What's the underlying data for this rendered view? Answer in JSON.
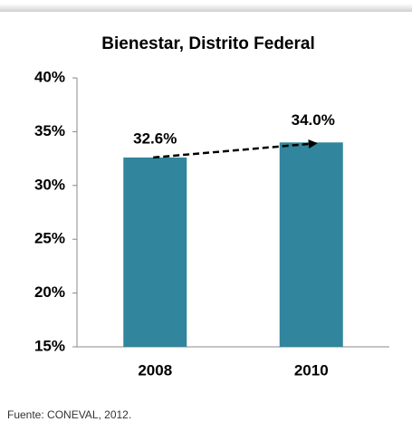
{
  "chart_data": {
    "type": "bar",
    "title": "Bienestar, Distrito Federal",
    "categories": [
      "2008",
      "2010"
    ],
    "values": [
      32.6,
      34.0
    ],
    "value_labels": [
      "32.6%",
      "34.0%"
    ],
    "color": "#31859c",
    "ylim": [
      15,
      40
    ],
    "yticks": [
      {
        "value": 15,
        "label": "15%"
      },
      {
        "value": 20,
        "label": "20%"
      },
      {
        "value": 25,
        "label": "25%"
      },
      {
        "value": 30,
        "label": "30%"
      },
      {
        "value": 35,
        "label": "35%"
      },
      {
        "value": 40,
        "label": "40%"
      }
    ],
    "source": "Fuente: CONEVAL, 2012."
  }
}
